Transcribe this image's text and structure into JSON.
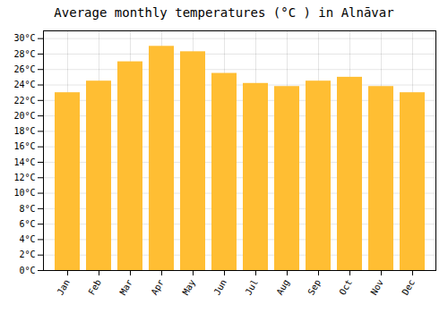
{
  "chart_data": {
    "type": "bar",
    "title": "Average monthly temperatures (°C ) in Alnāvar",
    "categories": [
      "Jan",
      "Feb",
      "Mar",
      "Apr",
      "May",
      "Jun",
      "Jul",
      "Aug",
      "Sep",
      "Oct",
      "Nov",
      "Dec"
    ],
    "values": [
      23.0,
      24.5,
      27.0,
      29.0,
      28.3,
      25.5,
      24.2,
      23.8,
      24.5,
      25.0,
      23.8,
      23.0
    ],
    "color": "#FFBE33",
    "ylim": [
      0,
      31
    ],
    "yticks": [
      {
        "value": 0,
        "label": "0°C"
      },
      {
        "value": 2,
        "label": "2°C"
      },
      {
        "value": 4,
        "label": "4°C"
      },
      {
        "value": 6,
        "label": "6°C"
      },
      {
        "value": 8,
        "label": "8°C"
      },
      {
        "value": 10,
        "label": "10°C"
      },
      {
        "value": 12,
        "label": "12°C"
      },
      {
        "value": 14,
        "label": "14°C"
      },
      {
        "value": 16,
        "label": "16°C"
      },
      {
        "value": 18,
        "label": "18°C"
      },
      {
        "value": 20,
        "label": "20°C"
      },
      {
        "value": 22,
        "label": "22°C"
      },
      {
        "value": 24,
        "label": "24°C"
      },
      {
        "value": 26,
        "label": "26°C"
      },
      {
        "value": 28,
        "label": "28°C"
      },
      {
        "value": 30,
        "label": "30°C"
      }
    ],
    "grid": true
  }
}
